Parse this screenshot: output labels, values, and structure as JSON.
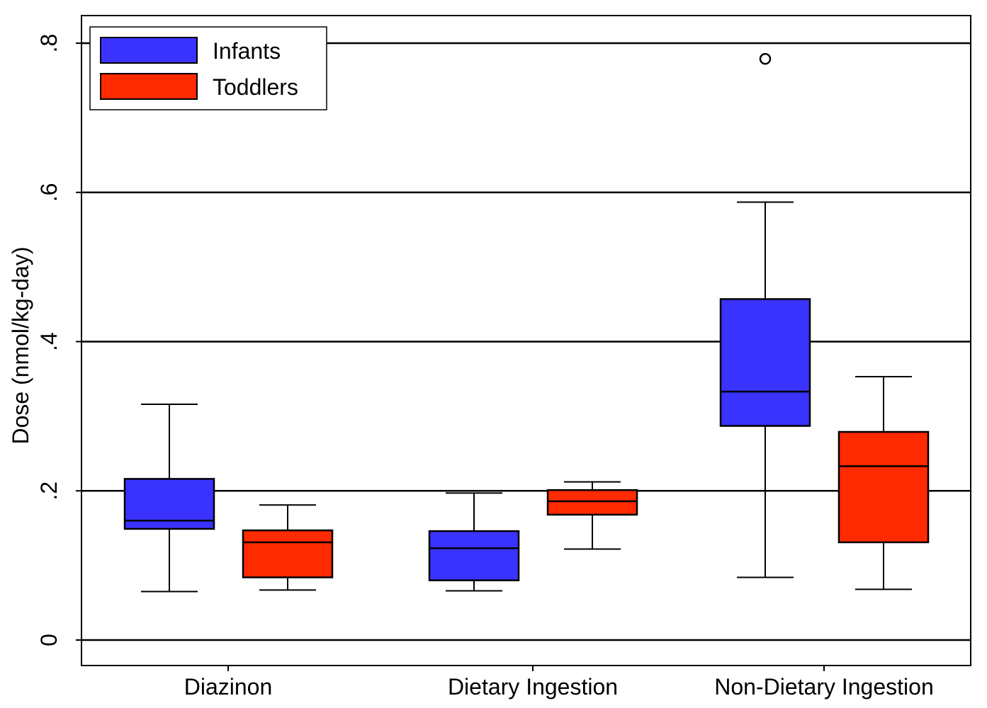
{
  "chart_data": {
    "type": "boxplot",
    "title": "",
    "xlabel": "",
    "ylabel": "Dose (nmol/kg-day)",
    "ylim": [
      0,
      0.8
    ],
    "yticks": [
      0,
      0.2,
      0.4,
      0.6,
      0.8
    ],
    "ytick_labels": [
      "0",
      ".2",
      ".4",
      ".6",
      ".8"
    ],
    "grid": "horizontal",
    "legend_position": "top-left",
    "categories": [
      "Diazinon",
      "Dietary Ingestion",
      "Non-Dietary Ingestion"
    ],
    "series": [
      {
        "name": "Infants",
        "color": "#3a33ff",
        "boxes": [
          {
            "whisker_low": 0.065,
            "q1": 0.149,
            "median": 0.16,
            "q3": 0.216,
            "whisker_high": 0.316,
            "outliers": []
          },
          {
            "whisker_low": 0.066,
            "q1": 0.08,
            "median": 0.123,
            "q3": 0.146,
            "whisker_high": 0.197,
            "outliers": []
          },
          {
            "whisker_low": 0.084,
            "q1": 0.287,
            "median": 0.333,
            "q3": 0.457,
            "whisker_high": 0.587,
            "outliers": [
              0.779
            ]
          }
        ]
      },
      {
        "name": "Toddlers",
        "color": "#ff2a00",
        "boxes": [
          {
            "whisker_low": 0.067,
            "q1": 0.084,
            "median": 0.131,
            "q3": 0.147,
            "whisker_high": 0.181,
            "outliers": []
          },
          {
            "whisker_low": 0.122,
            "q1": 0.168,
            "median": 0.186,
            "q3": 0.201,
            "whisker_high": 0.212,
            "outliers": []
          },
          {
            "whisker_low": 0.068,
            "q1": 0.131,
            "median": 0.233,
            "q3": 0.279,
            "whisker_high": 0.353,
            "outliers": []
          }
        ]
      }
    ]
  }
}
